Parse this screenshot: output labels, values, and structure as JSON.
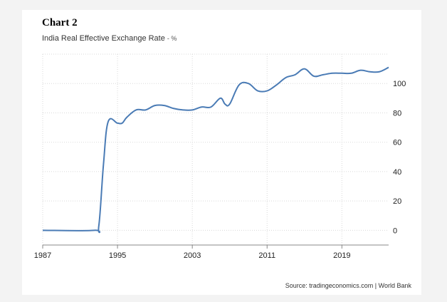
{
  "heading": "Chart 2",
  "title": "India Real Effective Exchange Rate",
  "unit": "- %",
  "source": "Source: tradingeconomics.com | World Bank",
  "colors": {
    "line": "#4a7bb5",
    "grid": "#d9d9d9",
    "axis": "#888888"
  },
  "chart_data": {
    "type": "line",
    "title": "India Real Effective Exchange Rate",
    "xlabel": "",
    "ylabel": "",
    "grid": true,
    "xlim": [
      1987,
      2024
    ],
    "ylim": [
      -10,
      120
    ],
    "xticks": [
      1987,
      1995,
      2003,
      2011,
      2019
    ],
    "yticks": [
      0,
      20,
      40,
      60,
      80,
      100
    ],
    "x": [
      1987,
      1992.5,
      1993,
      1993.5,
      1994,
      1995,
      1995.5,
      1996,
      1997,
      1998,
      1999,
      2000,
      2001,
      2002,
      2003,
      2004,
      2005,
      2006,
      2006.5,
      2007,
      2008,
      2009,
      2010,
      2011,
      2012,
      2013,
      2014,
      2015,
      2016,
      2017,
      2018,
      2019,
      2020,
      2021,
      2022,
      2023,
      2024
    ],
    "series": [
      {
        "values": [
          0,
          0,
          3,
          45,
          74,
          73,
          73,
          77,
          82,
          82,
          85,
          85,
          83,
          82,
          82,
          84,
          84,
          90,
          86,
          86,
          99,
          100,
          95,
          95,
          99,
          104,
          106,
          110,
          105,
          106,
          107,
          107,
          107,
          109,
          108,
          108,
          111
        ]
      }
    ]
  }
}
